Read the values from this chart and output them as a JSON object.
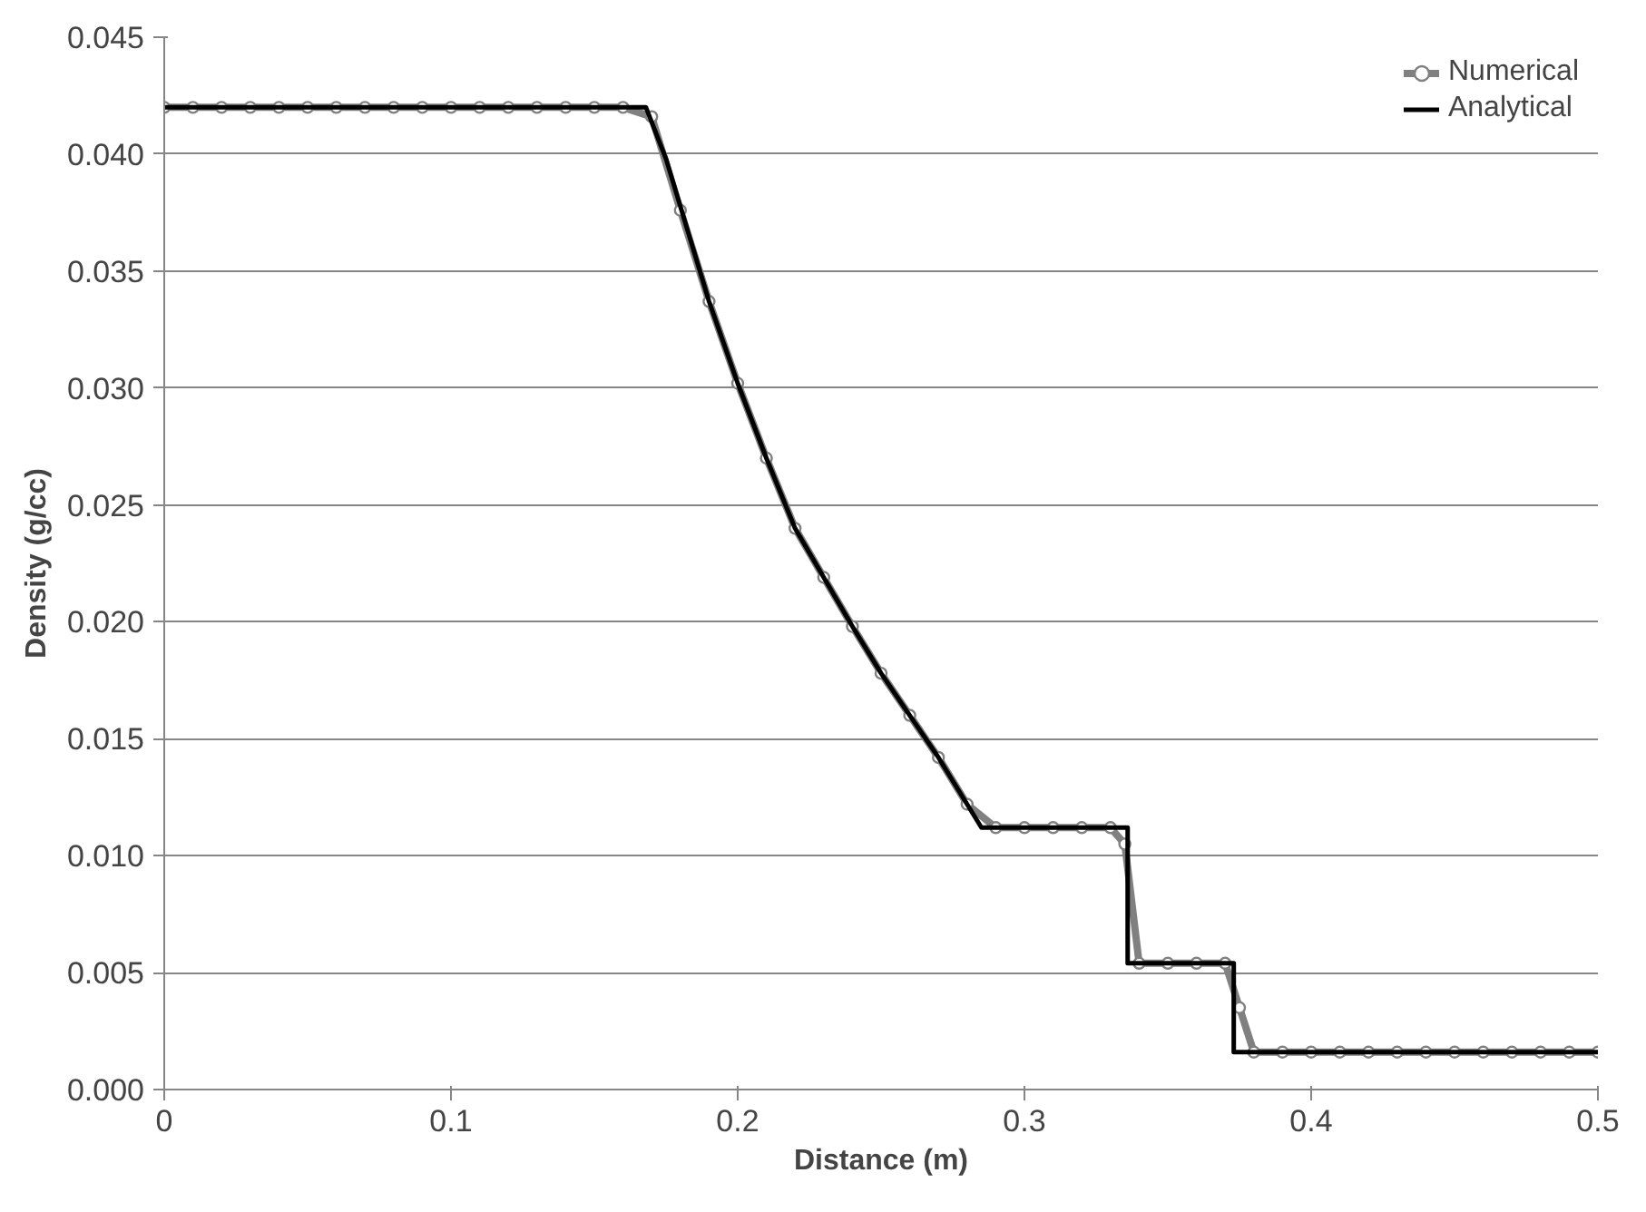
{
  "chart_data": {
    "type": "line",
    "xlabel": "Distance (m)",
    "ylabel": "Density (g/cc)",
    "xlim": [
      0,
      0.5
    ],
    "ylim": [
      0,
      0.045
    ],
    "xticks": [
      0,
      0.1,
      0.2,
      0.3,
      0.4,
      0.5
    ],
    "yticks": [
      {
        "value": 0,
        "label": "0.000"
      },
      {
        "value": 0.005,
        "label": "0.005"
      },
      {
        "value": 0.01,
        "label": "0.010"
      },
      {
        "value": 0.015,
        "label": "0.015"
      },
      {
        "value": 0.02,
        "label": "0.020"
      },
      {
        "value": 0.025,
        "label": "0.025"
      },
      {
        "value": 0.03,
        "label": "0.030"
      },
      {
        "value": 0.035,
        "label": "0.035"
      },
      {
        "value": 0.04,
        "label": "0.040"
      },
      {
        "value": 0.045,
        "label": "0.045"
      }
    ],
    "grid": "y",
    "legend": "top right",
    "series": [
      {
        "name": "Numerical",
        "color": "#808080",
        "marker": "circle",
        "x": [
          0,
          0.01,
          0.02,
          0.03,
          0.04,
          0.05,
          0.06,
          0.07,
          0.08,
          0.09,
          0.1,
          0.11,
          0.12,
          0.13,
          0.14,
          0.15,
          0.16,
          0.17,
          0.18,
          0.19,
          0.2,
          0.21,
          0.22,
          0.23,
          0.24,
          0.25,
          0.26,
          0.27,
          0.28,
          0.29,
          0.3,
          0.31,
          0.32,
          0.33,
          0.335,
          0.34,
          0.35,
          0.36,
          0.37,
          0.375,
          0.38,
          0.39,
          0.4,
          0.41,
          0.42,
          0.43,
          0.44,
          0.45,
          0.46,
          0.47,
          0.48,
          0.49,
          0.5
        ],
        "values": [
          0.042,
          0.042,
          0.042,
          0.042,
          0.042,
          0.042,
          0.042,
          0.042,
          0.042,
          0.042,
          0.042,
          0.042,
          0.042,
          0.042,
          0.042,
          0.042,
          0.042,
          0.0416,
          0.0376,
          0.0337,
          0.0302,
          0.027,
          0.024,
          0.0219,
          0.0198,
          0.0178,
          0.016,
          0.0142,
          0.0122,
          0.0112,
          0.0112,
          0.0112,
          0.0112,
          0.0112,
          0.0105,
          0.0054,
          0.0054,
          0.0054,
          0.0054,
          0.0035,
          0.0016,
          0.0016,
          0.0016,
          0.0016,
          0.0016,
          0.0016,
          0.0016,
          0.0016,
          0.0016,
          0.0016,
          0.0016,
          0.0016,
          0.0016
        ]
      },
      {
        "name": "Analytical",
        "color": "#000000",
        "marker": "none",
        "x": [
          0,
          0.168,
          0.175,
          0.19,
          0.2,
          0.21,
          0.22,
          0.23,
          0.24,
          0.25,
          0.26,
          0.27,
          0.28,
          0.285,
          0.336,
          0.336,
          0.373,
          0.373,
          0.5
        ],
        "values": [
          0.042,
          0.042,
          0.0398,
          0.0337,
          0.0302,
          0.027,
          0.024,
          0.0219,
          0.0198,
          0.0178,
          0.016,
          0.0142,
          0.0122,
          0.0112,
          0.0112,
          0.0054,
          0.0054,
          0.0016,
          0.0016
        ]
      }
    ]
  }
}
